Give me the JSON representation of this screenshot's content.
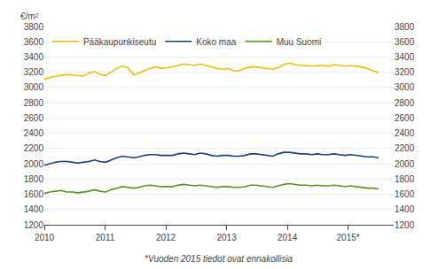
{
  "chart_data": {
    "type": "line",
    "ylabel": "€/m²",
    "note": "*Vuoden 2015 tiedot ovat ennakollisia",
    "x": [
      2010,
      2010.091667,
      2010.183333,
      2010.275,
      2010.366667,
      2010.458333,
      2010.55,
      2010.641667,
      2010.733333,
      2010.825,
      2010.916667,
      2011.008333,
      2011.1,
      2011.191667,
      2011.283333,
      2011.375,
      2011.466667,
      2011.558333,
      2011.65,
      2011.741667,
      2011.833333,
      2011.925,
      2012.016667,
      2012.108333,
      2012.2,
      2012.291667,
      2012.383333,
      2012.475,
      2012.566667,
      2012.658333,
      2012.75,
      2012.841667,
      2012.933333,
      2013.025,
      2013.116667,
      2013.208333,
      2013.3,
      2013.391667,
      2013.483333,
      2013.575,
      2013.666667,
      2013.758333,
      2013.85,
      2013.941667,
      2014.033333,
      2014.125,
      2014.216667,
      2014.308333,
      2014.4,
      2014.491667,
      2014.583333,
      2014.675,
      2014.766667,
      2014.858333,
      2014.95,
      2015.041667,
      2015.133333,
      2015.225,
      2015.316667,
      2015.408333,
      2015.5
    ],
    "series": [
      {
        "name": "Pääkaupunkiseutu",
        "color": "#e8c010",
        "values": [
          3110,
          3130,
          3150,
          3160,
          3170,
          3165,
          3160,
          3150,
          3190,
          3210,
          3170,
          3160,
          3200,
          3250,
          3280,
          3260,
          3170,
          3190,
          3220,
          3250,
          3270,
          3250,
          3260,
          3270,
          3290,
          3310,
          3300,
          3290,
          3310,
          3290,
          3270,
          3250,
          3240,
          3250,
          3220,
          3220,
          3250,
          3270,
          3270,
          3260,
          3250,
          3240,
          3260,
          3300,
          3320,
          3300,
          3290,
          3290,
          3280,
          3290,
          3290,
          3280,
          3300,
          3290,
          3280,
          3290,
          3280,
          3270,
          3250,
          3220,
          3200
        ]
      },
      {
        "name": "Koko maa",
        "color": "#1a3f7a",
        "values": [
          1980,
          2000,
          2020,
          2030,
          2030,
          2020,
          2010,
          2020,
          2030,
          2050,
          2030,
          2020,
          2050,
          2080,
          2100,
          2090,
          2080,
          2090,
          2110,
          2120,
          2120,
          2110,
          2110,
          2110,
          2130,
          2140,
          2130,
          2120,
          2140,
          2130,
          2110,
          2100,
          2110,
          2110,
          2100,
          2100,
          2110,
          2130,
          2130,
          2120,
          2110,
          2100,
          2130,
          2150,
          2150,
          2140,
          2130,
          2130,
          2120,
          2130,
          2120,
          2120,
          2130,
          2120,
          2110,
          2120,
          2110,
          2100,
          2090,
          2090,
          2080
        ]
      },
      {
        "name": "Muu Suomi",
        "color": "#5c9020",
        "values": [
          1610,
          1630,
          1640,
          1650,
          1630,
          1630,
          1620,
          1630,
          1640,
          1660,
          1640,
          1630,
          1660,
          1680,
          1700,
          1690,
          1680,
          1690,
          1710,
          1720,
          1710,
          1700,
          1700,
          1700,
          1720,
          1730,
          1720,
          1710,
          1720,
          1710,
          1700,
          1690,
          1700,
          1700,
          1690,
          1690,
          1700,
          1720,
          1720,
          1710,
          1700,
          1690,
          1710,
          1730,
          1740,
          1730,
          1720,
          1720,
          1710,
          1720,
          1710,
          1710,
          1720,
          1710,
          1700,
          1710,
          1700,
          1690,
          1680,
          1680,
          1670
        ]
      }
    ],
    "xlim": [
      2010,
      2015.75
    ],
    "xticks": [
      2010,
      2011,
      2012,
      2013,
      2014,
      {
        "value": 2015,
        "label": "2015*"
      }
    ],
    "ylim": [
      1200,
      3800
    ],
    "yticks": [
      1200,
      1400,
      1600,
      1800,
      2000,
      2200,
      2400,
      2600,
      2800,
      3000,
      3200,
      3400,
      3600,
      3800
    ],
    "y2lim": [
      1200,
      3800
    ],
    "y2ticks": [
      1200,
      1400,
      1600,
      1800,
      2000,
      2200,
      2400,
      2600,
      2800,
      3000,
      3200,
      3400,
      3600,
      3800
    ],
    "grid": true,
    "legend": "upper left"
  }
}
